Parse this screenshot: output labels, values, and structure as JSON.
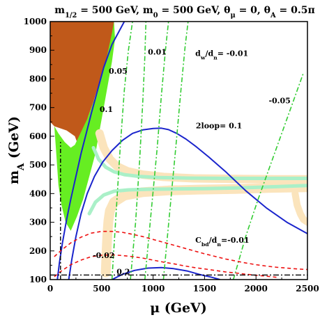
{
  "chart_data": {
    "type": "line",
    "title": "m<sub>1/2</sub> = 500 GeV, m<sub>0</sub> = 500 GeV, θ<sub>μ</sub> = 0, θ<sub>A</sub> = 0.5π",
    "title_parts": [
      "m",
      "1/2",
      " = 500 GeV, m",
      "0",
      " = 500 GeV, θ",
      "μ",
      " = 0, θ",
      "A",
      " = 0.5π"
    ],
    "xlabel": "μ (GeV)",
    "ylabel": "m",
    "ylabel_sub": "A",
    "ylabel_unit": " (GeV)",
    "xlim": [
      0,
      2500
    ],
    "ylim": [
      100,
      1000
    ],
    "x_ticks": [
      0,
      500,
      1000,
      1500,
      2000,
      2500
    ],
    "y_ticks": [
      100,
      200,
      300,
      400,
      500,
      600,
      700,
      800,
      900,
      1000
    ],
    "colors": {
      "excluded": "#c0591a",
      "green": "#66ee22",
      "pale_green": "#aaf0c8",
      "cream": "#fbe4bc",
      "blue": "#1a24cc",
      "green_dashdot": "#33cc33",
      "red_dash": "#ee1111",
      "black_dashdot": "#000000"
    },
    "annotations": [
      {
        "text": "0.01",
        "x": 1040,
        "y": 885
      },
      {
        "text": "0.05",
        "x": 660,
        "y": 818
      },
      {
        "text": "0.1",
        "x": 545,
        "y": 685
      },
      {
        "text": "-0.05",
        "x": 2230,
        "y": 715
      },
      {
        "text": "2loop= 0.1",
        "x": 1640,
        "y": 628
      },
      {
        "text": "-0.02",
        "x": 520,
        "y": 175
      },
      {
        "text": "0.2",
        "x": 710,
        "y": 118
      }
    ],
    "annotation_dw": {
      "base": "d",
      "sub": "w",
      "mid": "/d",
      "sub2": "n",
      "tail": "= -0.01",
      "x": 1410,
      "y": 880
    },
    "annotation_cbd": {
      "base": "C",
      "sub": "bd",
      "mid": "/d",
      "sub2": "n",
      "tail": "=-0.01",
      "x": 1410,
      "y": 228
    },
    "series": [
      {
        "name": "excluded",
        "kind": "fill",
        "color": "#c0591a",
        "x": [
          0,
          620,
          600,
          520,
          470,
          420,
          370,
          330,
          300,
          270,
          240,
          160,
          40,
          0
        ],
        "y": [
          1000,
          1000,
          920,
          840,
          780,
          720,
          670,
          620,
          590,
          570,
          600,
          620,
          635,
          650
        ]
      },
      {
        "name": "green-region",
        "kind": "fill",
        "color": "#66ee22",
        "x": [
          40,
          80,
          140,
          200,
          240,
          280,
          320,
          360,
          420,
          470,
          540,
          600,
          620,
          630,
          600,
          560,
          520,
          480,
          440,
          380,
          320,
          260,
          200,
          150,
          110,
          80,
          55
        ],
        "y": [
          635,
          610,
          580,
          560,
          570,
          600,
          630,
          660,
          720,
          770,
          860,
          960,
          1000,
          940,
          860,
          780,
          700,
          620,
          540,
          460,
          380,
          320,
          270,
          300,
          360,
          430,
          560
        ]
      },
      {
        "name": "cream-upper",
        "kind": "band",
        "color": "#fbe4bc",
        "w": 12,
        "x": [
          480,
          520,
          580,
          650,
          750,
          900,
          1100,
          1400,
          1800,
          2200,
          2500
        ],
        "y": [
          610,
          560,
          520,
          495,
          478,
          466,
          458,
          453,
          451,
          450,
          450
        ]
      },
      {
        "name": "paleg-upper",
        "kind": "band",
        "color": "#aaf0c8",
        "w": 5,
        "x": [
          420,
          470,
          540,
          620,
          720,
          860,
          1050,
          1350,
          1750,
          2150,
          2500
        ],
        "y": [
          560,
          520,
          492,
          476,
          466,
          460,
          456,
          454,
          453,
          453,
          453
        ]
      },
      {
        "name": "cream-lower",
        "kind": "band",
        "color": "#fbe4bc",
        "w": 14,
        "x": [
          540,
          548,
          556,
          566,
          580,
          620,
          720,
          900,
          1150,
          1450,
          1800,
          2150,
          2500
        ],
        "y": [
          125,
          200,
          260,
          305,
          340,
          370,
          393,
          405,
          411,
          414,
          416,
          420,
          422
        ]
      },
      {
        "name": "paleg-lower",
        "kind": "band",
        "color": "#aaf0c8",
        "w": 5,
        "x": [
          380,
          440,
          520,
          620,
          760,
          950,
          1200,
          1500,
          1850,
          2200,
          2500
        ],
        "y": [
          330,
          370,
          395,
          408,
          413,
          415,
          416,
          417,
          420,
          424,
          428
        ]
      },
      {
        "name": "cream-extra",
        "kind": "band",
        "color": "#fbe4bc",
        "w": 10,
        "x": [
          2380,
          2400,
          2430,
          2460,
          2500
        ],
        "y": [
          400,
          360,
          330,
          310,
          300
        ]
      },
      {
        "name": "blue-left",
        "kind": "line",
        "color": "#1a24cc",
        "w": 2,
        "dash": "",
        "x": [
          70,
          90,
          120,
          160,
          200,
          250,
          300,
          350,
          400,
          460,
          520,
          600,
          720
        ],
        "y": [
          100,
          160,
          230,
          310,
          380,
          460,
          540,
          610,
          680,
          760,
          840,
          920,
          1000
        ]
      },
      {
        "name": "blue-second",
        "kind": "line",
        "color": "#1a24cc",
        "w": 2,
        "dash": "",
        "x": [
          180,
          210,
          250,
          300,
          360,
          430,
          510,
          600,
          700,
          800,
          900,
          1000,
          1080,
          1150,
          1230,
          1320,
          1420,
          1540,
          1700,
          1900,
          2100,
          2300,
          2500
        ],
        "y": [
          100,
          170,
          250,
          330,
          400,
          460,
          510,
          550,
          585,
          610,
          622,
          627,
          628,
          623,
          610,
          590,
          563,
          528,
          478,
          410,
          350,
          300,
          260
        ]
      },
      {
        "name": "blue-bottom",
        "kind": "line",
        "color": "#1a24cc",
        "w": 2,
        "dash": "",
        "x": [
          600,
          700,
          820,
          950,
          1080,
          1200,
          1330,
          1450,
          1570,
          1650
        ],
        "y": [
          100,
          118,
          132,
          140,
          142,
          138,
          130,
          118,
          108,
          100
        ]
      },
      {
        "name": "green-dd-1",
        "kind": "line",
        "color": "#33cc33",
        "w": 1.6,
        "dash": "7 3 2 3",
        "x": [
          600,
          640,
          680,
          720,
          760,
          800
        ],
        "y": [
          100,
          330,
          560,
          760,
          900,
          1000
        ]
      },
      {
        "name": "green-dd-2",
        "kind": "line",
        "color": "#33cc33",
        "w": 1.6,
        "dash": "7 3 2 3",
        "x": [
          780,
          830,
          870,
          900,
          920,
          930
        ],
        "y": [
          100,
          300,
          520,
          720,
          880,
          1000
        ]
      },
      {
        "name": "green-dd-3",
        "kind": "line",
        "color": "#33cc33",
        "w": 1.6,
        "dash": "7 3 2 3",
        "x": [
          920,
          980,
          1040,
          1080,
          1120,
          1150
        ],
        "y": [
          100,
          330,
          560,
          740,
          900,
          1000
        ]
      },
      {
        "name": "green-dd-4",
        "kind": "line",
        "color": "#33cc33",
        "w": 1.6,
        "dash": "7 3 2 3",
        "x": [
          1100,
          1160,
          1220,
          1270,
          1310,
          1340
        ],
        "y": [
          100,
          330,
          560,
          760,
          910,
          1000
        ]
      },
      {
        "name": "green-dd-5",
        "kind": "line",
        "color": "#33cc33",
        "w": 1.6,
        "dash": "7 3 2 3",
        "x": [
          1780,
          1900,
          2020,
          2140,
          2260,
          2380,
          2460
        ],
        "y": [
          100,
          250,
          380,
          500,
          620,
          740,
          820
        ]
      },
      {
        "name": "red-dash-upper",
        "kind": "line",
        "color": "#ee1111",
        "w": 1.6,
        "dash": "5 4",
        "x": [
          40,
          100,
          200,
          300,
          400,
          500,
          600,
          700,
          800,
          900,
          1000,
          1100,
          1200,
          1300,
          1400,
          1500,
          1600,
          1700,
          1800,
          1900,
          2000,
          2100,
          2200,
          2300,
          2400,
          2500
        ],
        "y": [
          180,
          200,
          228,
          248,
          262,
          268,
          268,
          265,
          258,
          250,
          240,
          230,
          220,
          210,
          200,
          190,
          181,
          172,
          165,
          158,
          152,
          147,
          143,
          140,
          137,
          135
        ]
      },
      {
        "name": "red-dash-lower",
        "kind": "line",
        "color": "#ee1111",
        "w": 1.6,
        "dash": "5 4",
        "x": [
          40,
          100,
          200,
          300,
          400,
          500,
          600,
          700,
          800,
          900,
          1000,
          1100,
          1200,
          1300,
          1400,
          1500,
          1600,
          1700,
          1800,
          1900,
          2000,
          2100,
          2200
        ],
        "y": [
          110,
          128,
          152,
          168,
          180,
          185,
          186,
          184,
          180,
          175,
          168,
          161,
          155,
          148,
          142,
          137,
          132,
          127,
          123,
          119,
          115,
          112,
          108
        ]
      },
      {
        "name": "black-vert",
        "kind": "line",
        "color": "#000000",
        "w": 1.4,
        "dash": "6 3 2 3",
        "x": [
          100,
          100
        ],
        "y": [
          100,
          580
        ]
      },
      {
        "name": "black-horiz",
        "kind": "line",
        "color": "#000000",
        "w": 1.4,
        "dash": "8 3 2 3",
        "x": [
          0,
          2500
        ],
        "y": [
          116,
          116
        ]
      }
    ]
  }
}
